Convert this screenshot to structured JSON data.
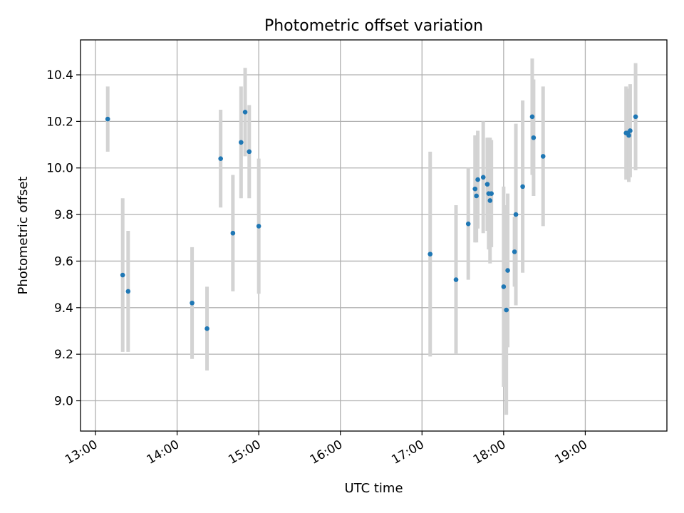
{
  "chart_data": {
    "type": "scatter",
    "title": "Photometric offset variation",
    "xlabel": "UTC time",
    "ylabel": "Photometric offset",
    "xlim": [
      "12:49",
      "20:00"
    ],
    "ylim": [
      8.87,
      10.55
    ],
    "x_ticks": [
      "13:00",
      "14:00",
      "15:00",
      "16:00",
      "17:00",
      "18:00",
      "19:00"
    ],
    "y_ticks": [
      "9.0",
      "9.2",
      "9.4",
      "9.6",
      "9.8",
      "10.0",
      "10.2",
      "10.4"
    ],
    "grid": true,
    "colors": {
      "points": "#1f77b4",
      "error_bars": "#d3d3d3"
    },
    "points": [
      {
        "x": "13:09",
        "y": 10.21,
        "yerr": 0.14
      },
      {
        "x": "13:20",
        "y": 9.54,
        "yerr": 0.33
      },
      {
        "x": "13:24",
        "y": 9.47,
        "yerr": 0.26
      },
      {
        "x": "14:11",
        "y": 9.42,
        "yerr": 0.24
      },
      {
        "x": "14:22",
        "y": 9.31,
        "yerr": 0.18
      },
      {
        "x": "14:32",
        "y": 10.04,
        "yerr": 0.21
      },
      {
        "x": "14:41",
        "y": 9.72,
        "yerr": 0.25
      },
      {
        "x": "14:47",
        "y": 10.11,
        "yerr": 0.24
      },
      {
        "x": "14:50",
        "y": 10.24,
        "yerr": 0.19
      },
      {
        "x": "14:53",
        "y": 10.07,
        "yerr": 0.2
      },
      {
        "x": "15:00",
        "y": 9.75,
        "yerr": 0.29
      },
      {
        "x": "17:06",
        "y": 9.63,
        "yerr": 0.44
      },
      {
        "x": "17:25",
        "y": 9.52,
        "yerr": 0.32
      },
      {
        "x": "17:34",
        "y": 9.76,
        "yerr": 0.24
      },
      {
        "x": "17:39",
        "y": 9.91,
        "yerr": 0.23
      },
      {
        "x": "17:40",
        "y": 9.88,
        "yerr": 0.2
      },
      {
        "x": "17:41",
        "y": 9.95,
        "yerr": 0.21
      },
      {
        "x": "17:45",
        "y": 9.96,
        "yerr": 0.24
      },
      {
        "x": "17:48",
        "y": 9.93,
        "yerr": 0.2
      },
      {
        "x": "17:49",
        "y": 9.89,
        "yerr": 0.24
      },
      {
        "x": "17:50",
        "y": 9.86,
        "yerr": 0.27
      },
      {
        "x": "17:51",
        "y": 9.89,
        "yerr": 0.23
      },
      {
        "x": "18:00",
        "y": 9.49,
        "yerr": 0.43
      },
      {
        "x": "18:02",
        "y": 9.39,
        "yerr": 0.45
      },
      {
        "x": "18:03",
        "y": 9.56,
        "yerr": 0.33
      },
      {
        "x": "18:08",
        "y": 9.64,
        "yerr": 0.15
      },
      {
        "x": "18:09",
        "y": 9.8,
        "yerr": 0.39
      },
      {
        "x": "18:14",
        "y": 9.92,
        "yerr": 0.37
      },
      {
        "x": "18:21",
        "y": 10.22,
        "yerr": 0.25
      },
      {
        "x": "18:22",
        "y": 10.13,
        "yerr": 0.25
      },
      {
        "x": "18:29",
        "y": 10.05,
        "yerr": 0.3
      },
      {
        "x": "19:30",
        "y": 10.15,
        "yerr": 0.2
      },
      {
        "x": "19:31",
        "y": 10.15,
        "yerr": 0.19
      },
      {
        "x": "19:32",
        "y": 10.14,
        "yerr": 0.2
      },
      {
        "x": "19:33",
        "y": 10.16,
        "yerr": 0.2
      },
      {
        "x": "19:37",
        "y": 10.22,
        "yerr": 0.23
      }
    ]
  }
}
